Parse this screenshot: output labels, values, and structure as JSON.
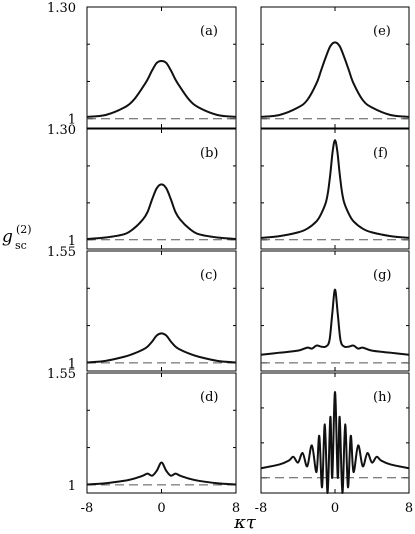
{
  "ylabel": "g",
  "ylabel_sub": "sc",
  "ylabel_sup": "(2)",
  "xlabel": "κτ",
  "chart_data": [
    {
      "type": "line",
      "panel": "(a)",
      "xlim": [
        -8,
        8
      ],
      "ylim": [
        0.975,
        1.3
      ],
      "yticks": [
        1,
        1.3
      ],
      "ytick_labels": [
        "1",
        "1.30"
      ],
      "xtick_labels": [],
      "baseline": 1,
      "series": [
        {
          "x": [
            -8,
            -6,
            -4,
            -3,
            -2,
            -1.5,
            -1,
            -0.5,
            0,
            0.5,
            1,
            1.5,
            2,
            3,
            4,
            6,
            8
          ],
          "y": [
            1.005,
            1.01,
            1.03,
            1.05,
            1.085,
            1.105,
            1.13,
            1.15,
            1.155,
            1.15,
            1.13,
            1.105,
            1.085,
            1.05,
            1.03,
            1.01,
            1.005
          ]
        }
      ]
    },
    {
      "type": "line",
      "panel": "(b)",
      "xlim": [
        -8,
        8
      ],
      "ylim": [
        0.975,
        1.3
      ],
      "yticks": [
        1,
        1.3
      ],
      "ytick_labels": [
        "1",
        "1.30"
      ],
      "xtick_labels": [],
      "baseline": 1,
      "series": [
        {
          "x": [
            -8,
            -6,
            -4,
            -3,
            -2,
            -1.5,
            -1,
            -0.5,
            0,
            0.5,
            1,
            1.5,
            2,
            3,
            4,
            6,
            8
          ],
          "y": [
            1.002,
            1.006,
            1.015,
            1.03,
            1.055,
            1.075,
            1.11,
            1.14,
            1.15,
            1.14,
            1.11,
            1.075,
            1.055,
            1.03,
            1.015,
            1.006,
            1.002
          ]
        }
      ]
    },
    {
      "type": "line",
      "panel": "(c)",
      "xlim": [
        -8,
        8
      ],
      "ylim": [
        0.96,
        1.55
      ],
      "yticks": [
        1,
        1.55
      ],
      "ytick_labels": [
        "1",
        "1.55"
      ],
      "xtick_labels": [],
      "baseline": 1,
      "series": [
        {
          "x": [
            -8,
            -6,
            -4,
            -3,
            -2,
            -1.5,
            -1,
            -0.5,
            0,
            0.5,
            1,
            1.5,
            2,
            3,
            4,
            6,
            8
          ],
          "y": [
            1.002,
            1.01,
            1.03,
            1.045,
            1.065,
            1.08,
            1.105,
            1.135,
            1.145,
            1.135,
            1.105,
            1.08,
            1.065,
            1.045,
            1.03,
            1.01,
            1.002
          ]
        }
      ]
    },
    {
      "type": "line",
      "panel": "(d)",
      "xlim": [
        -8,
        8
      ],
      "ylim": [
        0.96,
        1.55
      ],
      "yticks": [
        1,
        1.55
      ],
      "ytick_labels": [
        "1",
        "1.55"
      ],
      "xtick_labels": [
        "-8",
        "0",
        "8"
      ],
      "baseline": 1,
      "series": [
        {
          "x": [
            -8,
            -6,
            -4,
            -3,
            -2,
            -1.5,
            -1,
            -0.5,
            0,
            0.5,
            1,
            1.5,
            2,
            3,
            4,
            6,
            8
          ],
          "y": [
            1.002,
            1.008,
            1.02,
            1.03,
            1.045,
            1.055,
            1.045,
            1.07,
            1.11,
            1.07,
            1.045,
            1.055,
            1.045,
            1.03,
            1.02,
            1.008,
            1.002
          ]
        }
      ]
    },
    {
      "type": "line",
      "panel": "(e)",
      "xlim": [
        -8,
        8
      ],
      "ylim": [
        0.975,
        1.3
      ],
      "yticks": [
        1,
        1.3
      ],
      "ytick_labels": [],
      "xtick_labels": [],
      "baseline": 1,
      "series": [
        {
          "x": [
            -8,
            -6,
            -4,
            -3,
            -2,
            -1.5,
            -1,
            -0.5,
            0,
            0.5,
            1,
            1.5,
            2,
            3,
            4,
            6,
            8
          ],
          "y": [
            1.005,
            1.01,
            1.03,
            1.05,
            1.095,
            1.13,
            1.165,
            1.195,
            1.205,
            1.195,
            1.165,
            1.13,
            1.095,
            1.05,
            1.03,
            1.01,
            1.005
          ]
        }
      ]
    },
    {
      "type": "line",
      "panel": "(f)",
      "xlim": [
        -8,
        8
      ],
      "ylim": [
        0.975,
        1.3
      ],
      "yticks": [
        1,
        1.3
      ],
      "ytick_labels": [],
      "xtick_labels": [],
      "baseline": 1,
      "series": [
        {
          "x": [
            -8,
            -6,
            -4,
            -3,
            -2,
            -1.5,
            -1,
            -0.75,
            -0.5,
            -0.25,
            0,
            0.25,
            0.5,
            0.75,
            1,
            1.5,
            2,
            3,
            4,
            6,
            8
          ],
          "y": [
            1.005,
            1.01,
            1.02,
            1.03,
            1.05,
            1.07,
            1.1,
            1.13,
            1.18,
            1.24,
            1.27,
            1.24,
            1.18,
            1.13,
            1.1,
            1.07,
            1.05,
            1.03,
            1.02,
            1.01,
            1.005
          ]
        }
      ]
    },
    {
      "type": "line",
      "panel": "(g)",
      "xlim": [
        -8,
        8
      ],
      "ylim": [
        0.96,
        1.55
      ],
      "yticks": [
        1,
        1.55
      ],
      "ytick_labels": [],
      "xtick_labels": [],
      "baseline": 1,
      "series": [
        {
          "x": [
            -8,
            -6,
            -4,
            -3,
            -2.5,
            -2,
            -1.5,
            -1,
            -0.6,
            -0.3,
            0,
            0.3,
            0.6,
            1,
            1.5,
            2,
            2.5,
            3,
            4,
            6,
            8
          ],
          "y": [
            1.04,
            1.05,
            1.06,
            1.075,
            1.07,
            1.085,
            1.08,
            1.08,
            1.11,
            1.24,
            1.36,
            1.24,
            1.11,
            1.08,
            1.08,
            1.085,
            1.07,
            1.075,
            1.06,
            1.05,
            1.04
          ]
        }
      ]
    },
    {
      "type": "line",
      "panel": "(h)",
      "xlim": [
        -8,
        8
      ],
      "ylim": [
        0.92,
        1.55
      ],
      "yticks": [
        1,
        1.55
      ],
      "ytick_labels": [],
      "xtick_labels": [
        "-8",
        "0",
        "8"
      ],
      "baseline": 1,
      "series": [
        {
          "x": [
            -8,
            -6,
            -5,
            -4.5,
            -4,
            -3.5,
            -3,
            -2.5,
            -2,
            -1.7,
            -1.4,
            -1.1,
            -0.8,
            -0.5,
            -0.3,
            0,
            0.3,
            0.5,
            0.8,
            1.1,
            1.4,
            1.7,
            2,
            2.5,
            3,
            3.5,
            4,
            4.5,
            5,
            6,
            8
          ],
          "y": [
            1.05,
            1.07,
            1.09,
            1.11,
            1.08,
            1.13,
            1.06,
            1.17,
            1.03,
            1.22,
            0.95,
            1.28,
            0.92,
            1.32,
            1.0,
            1.45,
            1.0,
            1.32,
            0.92,
            1.28,
            0.95,
            1.22,
            1.03,
            1.17,
            1.06,
            1.13,
            1.08,
            1.11,
            1.09,
            1.07,
            1.05
          ]
        }
      ]
    }
  ]
}
